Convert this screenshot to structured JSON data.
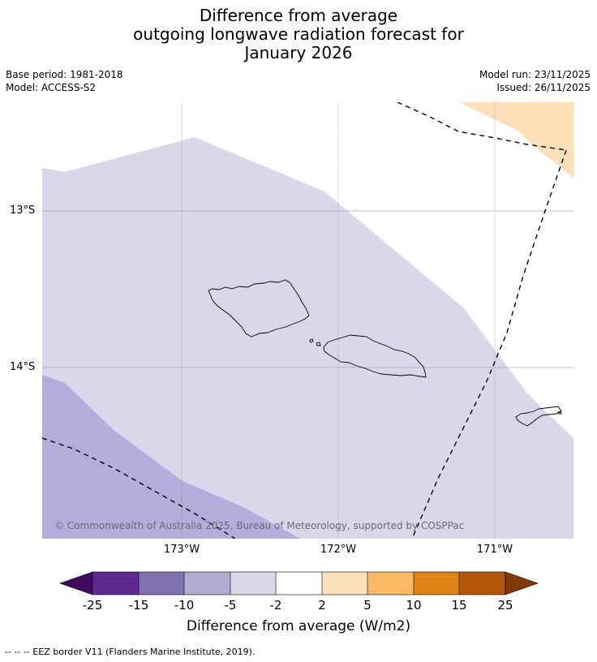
{
  "title": {
    "line1": "Difference from average",
    "line2": "outgoing longwave radiation forecast for",
    "line3": "January 2026"
  },
  "meta": {
    "base_period": "Base period: 1981-2018",
    "model": "Model: ACCESS-S2",
    "model_run": "Model run: 23/11/2025",
    "issued": "Issued: 26/11/2025"
  },
  "map": {
    "lat_labels": [
      "13°S",
      "14°S"
    ],
    "lon_labels": [
      "173°W",
      "172°W",
      "171°W"
    ],
    "copyright": "© Commonwealth of Australia 2025, Bureau of Meteorology, supported by COSPPac",
    "colors": {
      "light_purple": "#d8d8ea",
      "mid_purple": "#b2addb",
      "light_orange": "#fde0b8",
      "eez_line": "#000000",
      "grid": "#888888"
    }
  },
  "colorbar": {
    "ticks": [
      "-25",
      "-15",
      "-10",
      "-5",
      "-2",
      "2",
      "5",
      "10",
      "15",
      "25"
    ],
    "colors": [
      "#3f0a5e",
      "#5e2a91",
      "#8072b0",
      "#b2abd2",
      "#d9d9ea",
      "#ffffff",
      "#fde0b8",
      "#fdb863",
      "#e08214",
      "#b35806",
      "#7f3b08"
    ],
    "label": "Difference from average (W/m2)"
  },
  "footnote": "--  --  -- EEZ border V11 (Flanders Marine Institute, 2019)."
}
